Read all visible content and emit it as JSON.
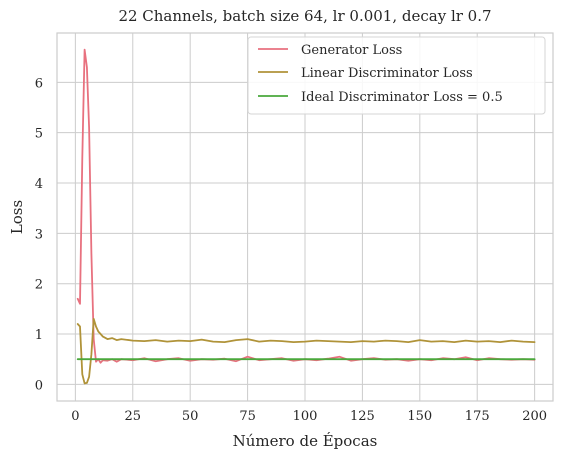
{
  "chart_data": {
    "type": "line",
    "title": "22 Channels, batch size 64, lr 0.001, decay lr 0.7",
    "xlabel": "Número de Épocas",
    "ylabel": "Loss",
    "xlim": [
      -8,
      208
    ],
    "ylim": [
      -0.33,
      6.98
    ],
    "xticks": [
      0,
      25,
      50,
      75,
      100,
      125,
      150,
      175,
      200
    ],
    "xtick_labels": [
      "0",
      "25",
      "50",
      "75",
      "100",
      "125",
      "150",
      "175",
      "200"
    ],
    "yticks": [
      0,
      1,
      2,
      3,
      4,
      5,
      6
    ],
    "ytick_labels": [
      "0",
      "1",
      "2",
      "3",
      "4",
      "5",
      "6"
    ],
    "grid": true,
    "legend_position": "top-right",
    "series": [
      {
        "name": "Generator Loss",
        "color": "#e8717f",
        "x": [
          1,
          2,
          3,
          4,
          5,
          6,
          7,
          8,
          9,
          10,
          11,
          12,
          14,
          16,
          18,
          20,
          25,
          30,
          35,
          40,
          45,
          50,
          55,
          60,
          65,
          70,
          75,
          80,
          85,
          90,
          95,
          100,
          105,
          110,
          115,
          120,
          125,
          130,
          135,
          140,
          145,
          150,
          155,
          160,
          165,
          170,
          175,
          180,
          185,
          190,
          195,
          200
        ],
        "y": [
          1.7,
          1.6,
          4.5,
          6.65,
          6.3,
          5.1,
          2.6,
          0.9,
          0.45,
          0.5,
          0.43,
          0.48,
          0.47,
          0.5,
          0.45,
          0.5,
          0.48,
          0.52,
          0.46,
          0.5,
          0.52,
          0.47,
          0.5,
          0.49,
          0.51,
          0.46,
          0.55,
          0.48,
          0.5,
          0.52,
          0.47,
          0.5,
          0.48,
          0.51,
          0.55,
          0.47,
          0.5,
          0.52,
          0.49,
          0.5,
          0.47,
          0.5,
          0.48,
          0.52,
          0.5,
          0.54,
          0.48,
          0.52,
          0.5,
          0.49,
          0.5,
          0.49
        ]
      },
      {
        "name": "Linear Discriminator Loss",
        "color": "#b09339",
        "x": [
          1,
          2,
          3,
          4,
          5,
          6,
          7,
          8,
          9,
          10,
          11,
          12,
          14,
          16,
          18,
          20,
          25,
          30,
          35,
          40,
          45,
          50,
          55,
          60,
          65,
          70,
          75,
          80,
          85,
          90,
          95,
          100,
          105,
          110,
          115,
          120,
          125,
          130,
          135,
          140,
          145,
          150,
          155,
          160,
          165,
          170,
          175,
          180,
          185,
          190,
          195,
          200
        ],
        "y": [
          1.2,
          1.15,
          0.2,
          0.02,
          0.03,
          0.15,
          0.6,
          1.3,
          1.15,
          1.05,
          1.0,
          0.95,
          0.9,
          0.92,
          0.88,
          0.9,
          0.87,
          0.86,
          0.88,
          0.85,
          0.87,
          0.86,
          0.89,
          0.85,
          0.84,
          0.88,
          0.9,
          0.85,
          0.87,
          0.86,
          0.84,
          0.85,
          0.87,
          0.86,
          0.85,
          0.84,
          0.86,
          0.85,
          0.87,
          0.86,
          0.84,
          0.88,
          0.85,
          0.86,
          0.84,
          0.87,
          0.85,
          0.86,
          0.84,
          0.87,
          0.85,
          0.84
        ]
      },
      {
        "name": "Ideal Discriminator Loss = 0.5",
        "color": "#4aa83c",
        "x": [
          1,
          200
        ],
        "y": [
          0.5,
          0.5
        ]
      }
    ]
  }
}
